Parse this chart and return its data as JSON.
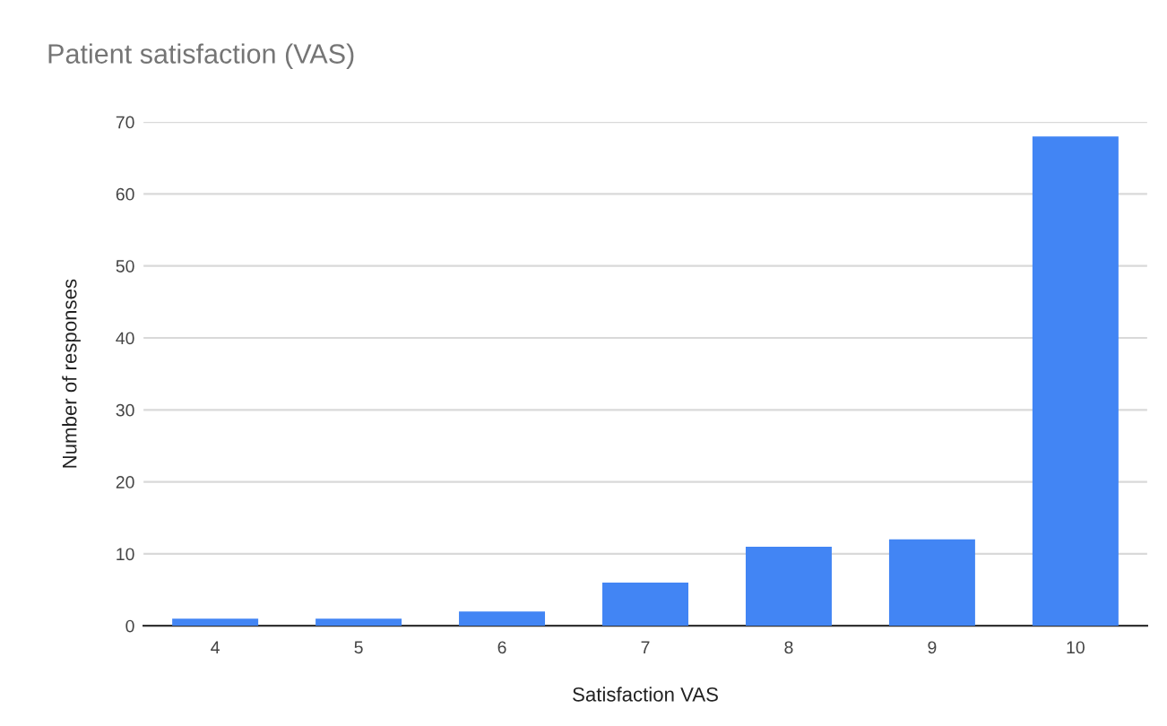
{
  "chart_data": {
    "type": "bar",
    "title": "Patient satisfaction (VAS)",
    "xlabel": "Satisfaction VAS",
    "ylabel": "Number of responses",
    "categories": [
      "4",
      "5",
      "6",
      "7",
      "8",
      "9",
      "10"
    ],
    "values": [
      1,
      1,
      2,
      6,
      11,
      12,
      68
    ],
    "color": "#4285f4",
    "ylim": [
      0,
      70
    ],
    "yticks": [
      0,
      10,
      20,
      30,
      40,
      50,
      60,
      70
    ],
    "grid": "y",
    "legend": false
  }
}
